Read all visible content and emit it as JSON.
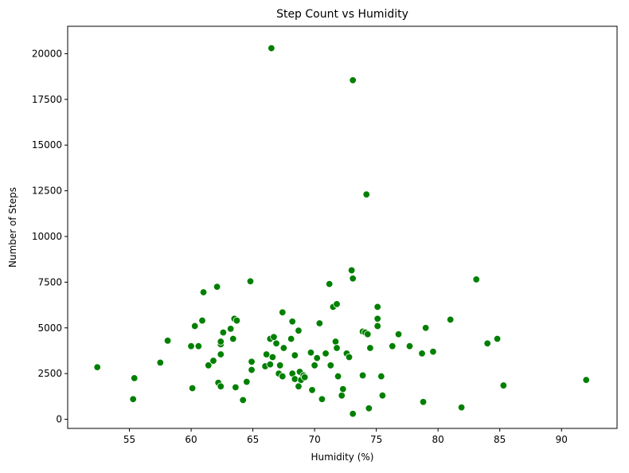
{
  "chart_data": {
    "type": "scatter",
    "title": "Step Count vs Humidity",
    "xlabel": "Humidity (%)",
    "ylabel": "Number of Steps",
    "xlim": [
      50.0,
      94.5
    ],
    "ylim": [
      -500,
      21500
    ],
    "xticks": [
      55,
      60,
      65,
      70,
      75,
      80,
      85,
      90
    ],
    "yticks": [
      0,
      2500,
      5000,
      7500,
      10000,
      12500,
      15000,
      17500,
      20000
    ],
    "grid": false,
    "marker_color": "#008000",
    "marker_edge_color": "#ffffff",
    "series": [
      {
        "points": [
          [
            52.4,
            2850
          ],
          [
            55.3,
            1100
          ],
          [
            55.4,
            2250
          ],
          [
            57.5,
            3100
          ],
          [
            58.1,
            4300
          ],
          [
            60.0,
            4000
          ],
          [
            60.1,
            1700
          ],
          [
            60.3,
            5100
          ],
          [
            60.6,
            4000
          ],
          [
            60.9,
            5400
          ],
          [
            61.0,
            6950
          ],
          [
            61.4,
            2950
          ],
          [
            61.8,
            3200
          ],
          [
            62.1,
            7250
          ],
          [
            62.2,
            2000
          ],
          [
            62.4,
            3550
          ],
          [
            62.4,
            4100
          ],
          [
            62.4,
            1800
          ],
          [
            62.4,
            4250
          ],
          [
            62.6,
            4750
          ],
          [
            63.2,
            4950
          ],
          [
            63.4,
            4400
          ],
          [
            63.5,
            5500
          ],
          [
            63.6,
            1750
          ],
          [
            63.7,
            5400
          ],
          [
            64.2,
            1050
          ],
          [
            64.5,
            2050
          ],
          [
            64.8,
            7550
          ],
          [
            64.9,
            2700
          ],
          [
            64.9,
            3150
          ],
          [
            66.0,
            2900
          ],
          [
            66.1,
            3550
          ],
          [
            66.4,
            4400
          ],
          [
            66.4,
            3000
          ],
          [
            66.5,
            20300
          ],
          [
            66.6,
            3400
          ],
          [
            66.7,
            4500
          ],
          [
            66.9,
            4150
          ],
          [
            67.1,
            2500
          ],
          [
            67.2,
            2950
          ],
          [
            67.4,
            2350
          ],
          [
            67.4,
            5850
          ],
          [
            67.5,
            3900
          ],
          [
            68.1,
            4400
          ],
          [
            68.2,
            5350
          ],
          [
            68.2,
            2500
          ],
          [
            68.4,
            3500
          ],
          [
            68.4,
            2200
          ],
          [
            68.7,
            1800
          ],
          [
            68.7,
            4850
          ],
          [
            68.8,
            2600
          ],
          [
            68.9,
            2150
          ],
          [
            69.1,
            2400
          ],
          [
            69.2,
            2300
          ],
          [
            69.7,
            3650
          ],
          [
            69.8,
            1600
          ],
          [
            70.0,
            2950
          ],
          [
            70.2,
            3350
          ],
          [
            70.4,
            5250
          ],
          [
            70.6,
            1100
          ],
          [
            70.9,
            3600
          ],
          [
            71.2,
            7400
          ],
          [
            71.3,
            2950
          ],
          [
            71.5,
            6150
          ],
          [
            71.7,
            4250
          ],
          [
            71.8,
            3900
          ],
          [
            71.8,
            6300
          ],
          [
            71.9,
            2350
          ],
          [
            72.2,
            1300
          ],
          [
            72.3,
            1650
          ],
          [
            72.6,
            3600
          ],
          [
            72.8,
            3400
          ],
          [
            73.0,
            8150
          ],
          [
            73.1,
            7700
          ],
          [
            73.1,
            300
          ],
          [
            73.1,
            18550
          ],
          [
            73.9,
            2400
          ],
          [
            73.9,
            4800
          ],
          [
            74.1,
            4750
          ],
          [
            74.2,
            12300
          ],
          [
            74.3,
            4650
          ],
          [
            74.4,
            600
          ],
          [
            74.5,
            3900
          ],
          [
            75.1,
            6150
          ],
          [
            75.1,
            5500
          ],
          [
            75.1,
            5100
          ],
          [
            75.4,
            2350
          ],
          [
            75.5,
            1300
          ],
          [
            76.3,
            4000
          ],
          [
            76.8,
            4650
          ],
          [
            77.7,
            4000
          ],
          [
            78.7,
            3600
          ],
          [
            78.8,
            950
          ],
          [
            79.0,
            5000
          ],
          [
            79.6,
            3700
          ],
          [
            81.0,
            5450
          ],
          [
            81.9,
            650
          ],
          [
            83.1,
            7650
          ],
          [
            84.0,
            4150
          ],
          [
            84.8,
            4400
          ],
          [
            85.3,
            1850
          ],
          [
            92.0,
            2150
          ]
        ]
      }
    ]
  }
}
